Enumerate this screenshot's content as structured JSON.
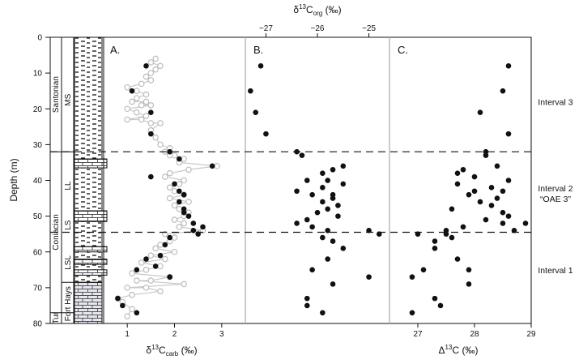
{
  "chart_data": [
    {
      "panel": "A.",
      "type": "scatter",
      "xlabel": "δ13Ccarb (‰)",
      "xlabel_parts": {
        "pre": "δ",
        "sup": "13",
        "mid": "C",
        "sub": "carb",
        "post": " (‰)"
      },
      "ylabel": "Depth (m)",
      "xlim": [
        0.5,
        3.5
      ],
      "ylim": [
        0,
        80
      ],
      "y_inverted": true,
      "xticks": [
        1,
        2,
        3
      ],
      "yticks": [
        0,
        10,
        20,
        30,
        40,
        50,
        60,
        70,
        80
      ],
      "series": [
        {
          "style": "filled",
          "points": [
            [
              1.4,
              8
            ],
            [
              1.1,
              15
            ],
            [
              1.5,
              21
            ],
            [
              1.5,
              27
            ],
            [
              1.9,
              32
            ],
            [
              2.1,
              34
            ],
            [
              2.8,
              36
            ],
            [
              1.5,
              39
            ],
            [
              2.0,
              41
            ],
            [
              2.1,
              43
            ],
            [
              2.2,
              44
            ],
            [
              2.1,
              46
            ],
            [
              2.2,
              48
            ],
            [
              2.2,
              49
            ],
            [
              2.3,
              50
            ],
            [
              2.4,
              52
            ],
            [
              2.6,
              53
            ],
            [
              2.4,
              54
            ],
            [
              2.5,
              55
            ],
            [
              1.9,
              56
            ],
            [
              1.8,
              58
            ],
            [
              1.7,
              61
            ],
            [
              1.4,
              62
            ],
            [
              1.6,
              64
            ],
            [
              1.2,
              65
            ],
            [
              1.9,
              67
            ],
            [
              0.8,
              73
            ],
            [
              0.9,
              75
            ],
            [
              1.2,
              77
            ]
          ]
        },
        {
          "style": "open",
          "points": [
            [
              1.6,
              6
            ],
            [
              1.5,
              7
            ],
            [
              1.7,
              8
            ],
            [
              1.6,
              9
            ],
            [
              1.5,
              10
            ],
            [
              1.4,
              11
            ],
            [
              1.5,
              12
            ],
            [
              1.3,
              13
            ],
            [
              1.0,
              14
            ],
            [
              1.2,
              15
            ],
            [
              1.4,
              16
            ],
            [
              1.2,
              17
            ],
            [
              1.1,
              18
            ],
            [
              1.4,
              18
            ],
            [
              1.3,
              19
            ],
            [
              1.5,
              19
            ],
            [
              1.0,
              20
            ],
            [
              1.2,
              21
            ],
            [
              1.4,
              22
            ],
            [
              1.0,
              23
            ],
            [
              1.3,
              23
            ],
            [
              1.5,
              24
            ],
            [
              1.7,
              24
            ],
            [
              1.5,
              26
            ],
            [
              1.6,
              28
            ],
            [
              1.7,
              30
            ],
            [
              1.9,
              31
            ],
            [
              1.8,
              32
            ],
            [
              1.9,
              33
            ],
            [
              2.0,
              33
            ],
            [
              2.2,
              34
            ],
            [
              2.1,
              35
            ],
            [
              2.9,
              36
            ],
            [
              2.3,
              37
            ],
            [
              1.9,
              38
            ],
            [
              1.8,
              39
            ],
            [
              2.2,
              40
            ],
            [
              2.1,
              41
            ],
            [
              1.9,
              42
            ],
            [
              2.0,
              43
            ],
            [
              2.2,
              44
            ],
            [
              1.9,
              45
            ],
            [
              2.3,
              46
            ],
            [
              2.0,
              47
            ],
            [
              2.1,
              48
            ],
            [
              2.3,
              49
            ],
            [
              2.2,
              50
            ],
            [
              2.0,
              51
            ],
            [
              2.2,
              52
            ],
            [
              2.1,
              53
            ],
            [
              2.6,
              54
            ],
            [
              1.8,
              55
            ],
            [
              2.0,
              56
            ],
            [
              1.9,
              57
            ],
            [
              1.7,
              58
            ],
            [
              1.6,
              59
            ],
            [
              2.0,
              60
            ],
            [
              1.5,
              61
            ],
            [
              1.8,
              62
            ],
            [
              1.3,
              63
            ],
            [
              1.7,
              64
            ],
            [
              1.4,
              65
            ],
            [
              1.1,
              66
            ],
            [
              1.9,
              67
            ],
            [
              1.5,
              68
            ],
            [
              1.2,
              68
            ],
            [
              2.2,
              69
            ],
            [
              1.0,
              70
            ],
            [
              1.4,
              70
            ],
            [
              1.7,
              71
            ],
            [
              1.1,
              72
            ],
            [
              0.8,
              73
            ],
            [
              0.9,
              74
            ],
            [
              1.1,
              76
            ],
            [
              1.0,
              78
            ]
          ]
        }
      ]
    },
    {
      "panel": "B.",
      "type": "scatter",
      "xlabel": "δ13Corg (‰)",
      "xlabel_parts": {
        "pre": "δ",
        "sup": "13",
        "mid": "C",
        "sub": "org",
        "post": " (‰)"
      },
      "xlim": [
        -27.4,
        -24.6
      ],
      "xticks": [
        -27,
        -26,
        -25
      ],
      "xtick_labels": [
        "−27",
        "−26",
        "−25"
      ],
      "ylim": [
        0,
        80
      ],
      "points": [
        [
          -27.1,
          8
        ],
        [
          -27.3,
          15
        ],
        [
          -27.2,
          21
        ],
        [
          -27.0,
          27
        ],
        [
          -26.4,
          32
        ],
        [
          -26.3,
          33
        ],
        [
          -25.5,
          36
        ],
        [
          -25.7,
          37
        ],
        [
          -25.9,
          38
        ],
        [
          -26.2,
          40
        ],
        [
          -25.8,
          40
        ],
        [
          -25.5,
          41
        ],
        [
          -25.9,
          42
        ],
        [
          -26.4,
          43
        ],
        [
          -25.7,
          44
        ],
        [
          -26.1,
          44
        ],
        [
          -25.7,
          45
        ],
        [
          -25.9,
          46
        ],
        [
          -25.6,
          47
        ],
        [
          -25.8,
          48
        ],
        [
          -26.0,
          49
        ],
        [
          -25.6,
          50
        ],
        [
          -26.2,
          51
        ],
        [
          -26.4,
          52
        ],
        [
          -26.1,
          53
        ],
        [
          -25.0,
          54
        ],
        [
          -25.8,
          54
        ],
        [
          -24.8,
          55
        ],
        [
          -25.9,
          56
        ],
        [
          -25.7,
          57
        ],
        [
          -25.5,
          59
        ],
        [
          -25.8,
          62
        ],
        [
          -26.1,
          65
        ],
        [
          -25.7,
          69
        ],
        [
          -25.0,
          67
        ],
        [
          -26.2,
          73
        ],
        [
          -26.2,
          75
        ],
        [
          -25.9,
          77
        ]
      ]
    },
    {
      "panel": "C.",
      "type": "scatter",
      "xlabel": "Δ13C (‰)",
      "xlabel_parts": {
        "pre": "Δ",
        "sup": "13",
        "mid": "C",
        "sub": "",
        "post": " (‰)"
      },
      "xlim": [
        26.5,
        29.0
      ],
      "xticks": [
        27,
        28,
        29
      ],
      "ylim": [
        0,
        80
      ],
      "points": [
        [
          28.6,
          8
        ],
        [
          28.5,
          15
        ],
        [
          28.1,
          21
        ],
        [
          28.6,
          27
        ],
        [
          28.2,
          32
        ],
        [
          28.2,
          33
        ],
        [
          28.4,
          36
        ],
        [
          27.8,
          37
        ],
        [
          27.7,
          38
        ],
        [
          28.0,
          39
        ],
        [
          28.6,
          40
        ],
        [
          27.7,
          41
        ],
        [
          28.3,
          42
        ],
        [
          28.0,
          43
        ],
        [
          28.5,
          43
        ],
        [
          27.9,
          44
        ],
        [
          28.4,
          45
        ],
        [
          28.1,
          46
        ],
        [
          28.3,
          47
        ],
        [
          27.6,
          48
        ],
        [
          28.5,
          49
        ],
        [
          28.6,
          50
        ],
        [
          28.2,
          51
        ],
        [
          28.5,
          52
        ],
        [
          27.8,
          53
        ],
        [
          28.9,
          52
        ],
        [
          28.7,
          54
        ],
        [
          27.5,
          55
        ],
        [
          27.0,
          55
        ],
        [
          27.5,
          54
        ],
        [
          27.6,
          56
        ],
        [
          27.3,
          57
        ],
        [
          27.3,
          59
        ],
        [
          27.7,
          62
        ],
        [
          27.9,
          65
        ],
        [
          27.1,
          65
        ],
        [
          26.9,
          67
        ],
        [
          27.9,
          69
        ],
        [
          27.3,
          73
        ],
        [
          27.4,
          75
        ],
        [
          26.9,
          77
        ]
      ]
    }
  ],
  "interval_lines_depth": [
    32,
    54.5
  ],
  "interval_labels": [
    {
      "depth": 18,
      "lines": [
        "Interval 3"
      ]
    },
    {
      "depth": 43.5,
      "lines": [
        "Interval 2",
        "“OAE 3”"
      ]
    },
    {
      "depth": 65,
      "lines": [
        "Interval 1"
      ]
    }
  ],
  "strat": {
    "stage_labels": [
      {
        "text": "Santonian",
        "top": 0,
        "bottom": 32
      },
      {
        "text": "Coniacian",
        "top": 32,
        "bottom": 77
      },
      {
        "text": "Tur",
        "top": 77,
        "bottom": 80
      }
    ],
    "member_labels": [
      {
        "text": "MS",
        "top": 12,
        "bottom": 23
      },
      {
        "text": "LL",
        "top": 35,
        "bottom": 48
      },
      {
        "text": "LS",
        "top": 49,
        "bottom": 56
      },
      {
        "text": "LSL",
        "top": 57,
        "bottom": 69
      },
      {
        "text": "Fort Hays",
        "top": 69,
        "bottom": 80
      }
    ]
  }
}
